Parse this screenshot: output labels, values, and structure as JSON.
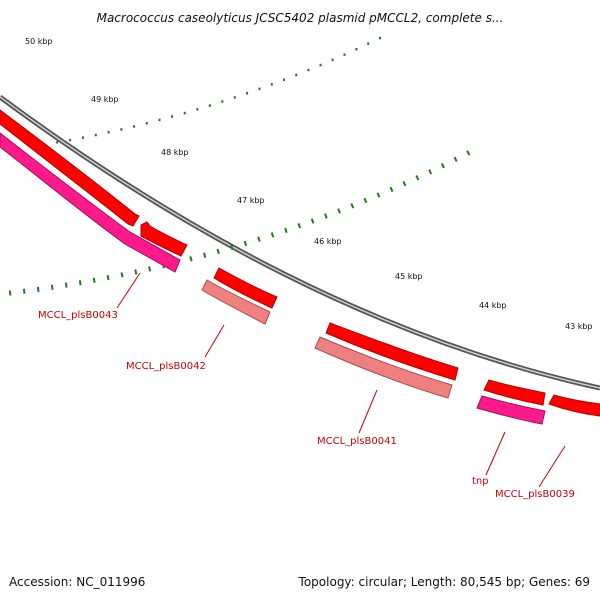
{
  "title": "Macrococcus caseolyticus JCSC5402 plasmid pMCCL2, complete s...",
  "footer": {
    "accession": "Accession: NC_011996",
    "summary": "Topology: circular; Length: 80,545 bp; Genes: 69"
  },
  "ticks": [
    "50 kbp",
    "49 kbp",
    "48 kbp",
    "47 kbp",
    "46 kbp",
    "45 kbp",
    "44 kbp",
    "43 kbp"
  ],
  "genes": [
    {
      "name": "MCCL_plsB0043",
      "color": "#ff1a8c"
    },
    {
      "name": "MCCL_plsB0042",
      "color": "#f08080"
    },
    {
      "name": "MCCL_plsB0041",
      "color": "#f08080"
    },
    {
      "name": "tnp",
      "color": "#ff1a8c"
    },
    {
      "name": "MCCL_plsB0039",
      "color": "#ff0000"
    }
  ],
  "colors": {
    "backbone": "#808080",
    "cds": "#ff0000",
    "cds_light": "#f08080",
    "mobile": "#ff1a8c",
    "gc_skew": "#1e7b1e",
    "label": "#cc0000"
  }
}
